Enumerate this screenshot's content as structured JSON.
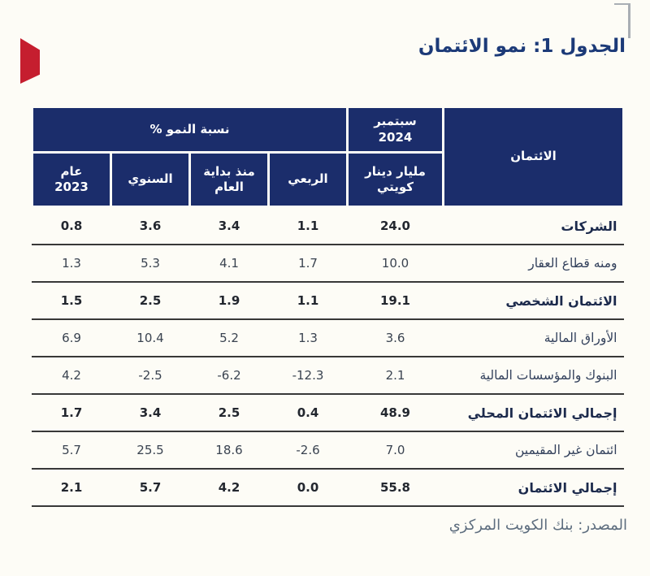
{
  "page": {
    "title": "الجدول 1: نمو الائتمان",
    "source": "المصدر: بنك الكويت المركزي"
  },
  "colors": {
    "header_navy": "#1b2d6b",
    "title_navy": "#1c3a78",
    "accent_red": "#c51e2f",
    "page_background": "#fdfcf6"
  },
  "table": {
    "header": {
      "credit": "الائتمان",
      "sept": "سبتمبر 2024",
      "sept_unit": "مليار دينار كويتي",
      "growth_group": "نسبة النمو %",
      "sub": [
        "الربعي",
        "منذ بداية العام",
        "السنوي",
        "عام 2023"
      ]
    },
    "columns_note": "values order: سبتمبر 2024, الربعي, منذ بداية العام, السنوي, عام 2023",
    "rows": [
      {
        "label": "الشركات",
        "bold": true,
        "values": [
          "24.0",
          "1.1",
          "3.4",
          "3.6",
          "0.8"
        ]
      },
      {
        "label": "ومنه قطاع العقار",
        "bold": false,
        "values": [
          "10.0",
          "1.7",
          "4.1",
          "5.3",
          "1.3"
        ]
      },
      {
        "label": "الائتمان الشخصي",
        "bold": true,
        "values": [
          "19.1",
          "1.1",
          "1.9",
          "2.5",
          "1.5"
        ]
      },
      {
        "label": "الأوراق المالية",
        "bold": false,
        "values": [
          "3.6",
          "1.3",
          "5.2",
          "10.4",
          "6.9"
        ]
      },
      {
        "label": "البنوك والمؤسسات المالية",
        "bold": false,
        "values": [
          "2.1",
          "-12.3",
          "-6.2",
          "-2.5",
          "4.2"
        ]
      },
      {
        "label": "إجمالي الائتمان المحلي",
        "bold": true,
        "values": [
          "48.9",
          "0.4",
          "2.5",
          "3.4",
          "1.7"
        ]
      },
      {
        "label": "ائتمان غير المقيمين",
        "bold": false,
        "values": [
          "7.0",
          "-2.6",
          "18.6",
          "25.5",
          "5.7"
        ]
      },
      {
        "label": "إجمالي الائتمان",
        "bold": true,
        "values": [
          "55.8",
          "0.0",
          "4.2",
          "5.7",
          "2.1"
        ]
      }
    ]
  }
}
